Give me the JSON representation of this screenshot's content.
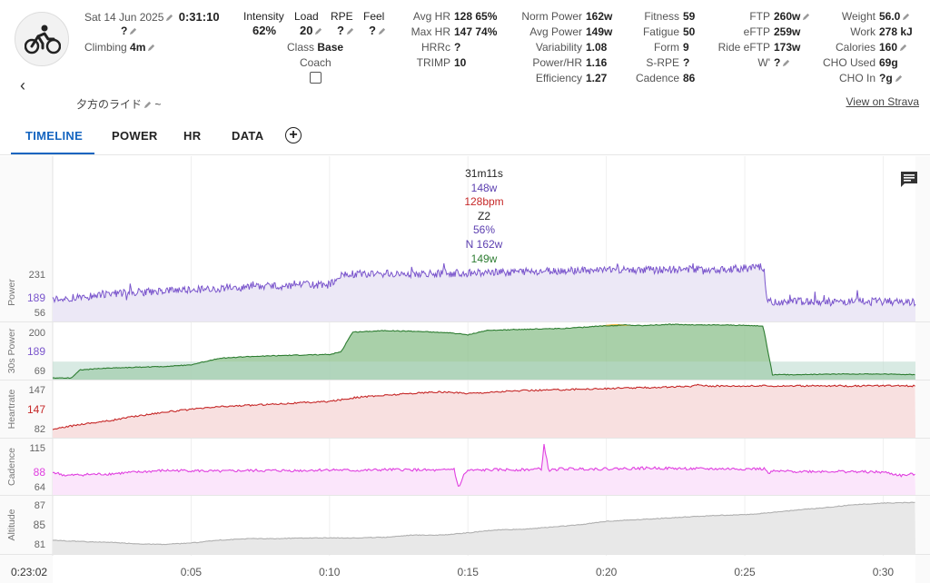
{
  "activity": {
    "date": "Sat 14 Jun 2025",
    "duration": "0:31:10",
    "type_value": "?",
    "climbing_label": "Climbing",
    "climbing_value": "4m",
    "name": "夕方のライド",
    "name_suffix": "~",
    "view_strava": "View on Strava"
  },
  "stats": {
    "intensity": {
      "label": "Intensity",
      "value": "62%"
    },
    "load": {
      "label": "Load",
      "value": "20"
    },
    "rpe": {
      "label": "RPE",
      "value": "?"
    },
    "feel": {
      "label": "Feel",
      "value": "?"
    },
    "class": {
      "label": "Class",
      "value": "Base"
    },
    "coach": {
      "label": "Coach"
    },
    "avg_hr": {
      "label": "Avg HR",
      "value": "128",
      "pct": "65%"
    },
    "max_hr": {
      "label": "Max HR",
      "value": "147",
      "pct": "74%"
    },
    "hrrc": {
      "label": "HRRc",
      "value": "?"
    },
    "trimp": {
      "label": "TRIMP",
      "value": "10"
    },
    "norm_power": {
      "label": "Norm Power",
      "value": "162w"
    },
    "avg_power": {
      "label": "Avg Power",
      "value": "149w"
    },
    "variability": {
      "label": "Variability",
      "value": "1.08"
    },
    "power_hr": {
      "label": "Power/HR",
      "value": "1.16"
    },
    "efficiency": {
      "label": "Efficiency",
      "value": "1.27"
    },
    "fitness": {
      "label": "Fitness",
      "value": "59"
    },
    "fatigue": {
      "label": "Fatigue",
      "value": "50"
    },
    "form": {
      "label": "Form",
      "value": "9"
    },
    "srpe": {
      "label": "S-RPE",
      "value": "?"
    },
    "cadence": {
      "label": "Cadence",
      "value": "86"
    },
    "ftp": {
      "label": "FTP",
      "value": "260w"
    },
    "eftp": {
      "label": "eFTP",
      "value": "259w"
    },
    "ride_eftp": {
      "label": "Ride eFTP",
      "value": "173w"
    },
    "wprime": {
      "label": "W'",
      "value": "?"
    },
    "weight": {
      "label": "Weight",
      "value": "56.0"
    },
    "work": {
      "label": "Work",
      "value": "278 kJ"
    },
    "calories": {
      "label": "Calories",
      "value": "160"
    },
    "cho_used": {
      "label": "CHO Used",
      "value": "69g"
    },
    "cho_in": {
      "label": "CHO In",
      "value": "?g"
    }
  },
  "tabs": [
    {
      "label": "TIMELINE"
    },
    {
      "label": "POWER"
    },
    {
      "label": "HR"
    },
    {
      "label": "DATA"
    }
  ],
  "tooltip": {
    "time": "31m11s",
    "power": "148w",
    "hr": "128bpm",
    "zone": "Z2",
    "pct": "56%",
    "np": "N 162w",
    "power2": "149w"
  },
  "colors": {
    "accent": "#1565c0",
    "power": "#7a55cc",
    "power30_line": "#2e7d32",
    "power30_fill": "#8cc08c",
    "power30_top": "#f0b43c",
    "heartrate": "#c62828",
    "cadence": "#e040e0",
    "altitude": "#aaaaaa"
  },
  "chart_data": [
    {
      "type": "line",
      "name": "Power",
      "ylabel": "Power",
      "ticks": [
        "231",
        "189",
        "56"
      ],
      "current": "189",
      "x_min_seconds": 0,
      "x_max_seconds": 1870,
      "points": [
        [
          0,
          120
        ],
        [
          60,
          130
        ],
        [
          120,
          140
        ],
        [
          240,
          150
        ],
        [
          360,
          160
        ],
        [
          420,
          163
        ],
        [
          480,
          168
        ],
        [
          540,
          172
        ],
        [
          600,
          172
        ],
        [
          630,
          210
        ],
        [
          700,
          212
        ],
        [
          800,
          212
        ],
        [
          900,
          215
        ],
        [
          1000,
          218
        ],
        [
          1100,
          222
        ],
        [
          1200,
          225
        ],
        [
          1300,
          226
        ],
        [
          1400,
          228
        ],
        [
          1500,
          232
        ],
        [
          1540,
          235
        ],
        [
          1550,
          110
        ],
        [
          1620,
          112
        ],
        [
          1700,
          110
        ],
        [
          1800,
          112
        ],
        [
          1870,
          110
        ]
      ]
    },
    {
      "type": "area",
      "name": "30s Power",
      "ylabel": "30s Power",
      "ticks": [
        "200",
        "189",
        "69"
      ],
      "current": "189",
      "points": [
        [
          0,
          60
        ],
        [
          40,
          60
        ],
        [
          60,
          85
        ],
        [
          120,
          90
        ],
        [
          240,
          95
        ],
        [
          300,
          100
        ],
        [
          360,
          120
        ],
        [
          420,
          125
        ],
        [
          480,
          128
        ],
        [
          540,
          130
        ],
        [
          600,
          132
        ],
        [
          625,
          140
        ],
        [
          650,
          200
        ],
        [
          720,
          205
        ],
        [
          800,
          202
        ],
        [
          860,
          198
        ],
        [
          900,
          192
        ],
        [
          940,
          205
        ],
        [
          1000,
          208
        ],
        [
          1060,
          210
        ],
        [
          1120,
          212
        ],
        [
          1180,
          218
        ],
        [
          1240,
          222
        ],
        [
          1280,
          220
        ],
        [
          1340,
          224
        ],
        [
          1400,
          222
        ],
        [
          1460,
          222
        ],
        [
          1520,
          220
        ],
        [
          1540,
          218
        ],
        [
          1560,
          70
        ],
        [
          1600,
          70
        ],
        [
          1700,
          72
        ],
        [
          1800,
          72
        ],
        [
          1870,
          70
        ]
      ]
    },
    {
      "type": "area",
      "name": "Heartrate",
      "ylabel": "Heartrate",
      "ticks": [
        "147",
        "147",
        "82"
      ],
      "current": "147",
      "points": [
        [
          0,
          82
        ],
        [
          60,
          90
        ],
        [
          120,
          95
        ],
        [
          180,
          102
        ],
        [
          240,
          108
        ],
        [
          300,
          112
        ],
        [
          360,
          116
        ],
        [
          420,
          118
        ],
        [
          480,
          120
        ],
        [
          540,
          122
        ],
        [
          600,
          124
        ],
        [
          660,
          130
        ],
        [
          720,
          133
        ],
        [
          780,
          136
        ],
        [
          840,
          138
        ],
        [
          900,
          136
        ],
        [
          960,
          138
        ],
        [
          1020,
          140
        ],
        [
          1080,
          141
        ],
        [
          1140,
          142
        ],
        [
          1200,
          143
        ],
        [
          1260,
          144
        ],
        [
          1320,
          145
        ],
        [
          1380,
          146
        ],
        [
          1400,
          149
        ],
        [
          1420,
          147
        ],
        [
          1500,
          147
        ],
        [
          1600,
          147
        ],
        [
          1700,
          147
        ],
        [
          1870,
          147
        ]
      ]
    },
    {
      "type": "area",
      "name": "Cadence",
      "ylabel": "Cadence",
      "ticks": [
        "115",
        "88",
        "64"
      ],
      "current": "88",
      "points": [
        [
          0,
          82
        ],
        [
          30,
          78
        ],
        [
          60,
          79
        ],
        [
          120,
          80
        ],
        [
          180,
          82
        ],
        [
          240,
          84
        ],
        [
          300,
          84
        ],
        [
          360,
          83
        ],
        [
          420,
          84
        ],
        [
          480,
          84
        ],
        [
          540,
          84
        ],
        [
          600,
          85
        ],
        [
          660,
          84
        ],
        [
          720,
          85
        ],
        [
          780,
          85
        ],
        [
          840,
          84
        ],
        [
          870,
          86
        ],
        [
          880,
          62
        ],
        [
          890,
          78
        ],
        [
          900,
          84
        ],
        [
          960,
          85
        ],
        [
          1020,
          85
        ],
        [
          1060,
          86
        ],
        [
          1065,
          115
        ],
        [
          1075,
          84
        ],
        [
          1100,
          86
        ],
        [
          1200,
          86
        ],
        [
          1300,
          87
        ],
        [
          1400,
          86
        ],
        [
          1500,
          86
        ],
        [
          1545,
          86
        ],
        [
          1550,
          80
        ],
        [
          1560,
          83
        ],
        [
          1600,
          83
        ],
        [
          1700,
          83
        ],
        [
          1800,
          82
        ],
        [
          1840,
          78
        ],
        [
          1870,
          80
        ]
      ]
    },
    {
      "type": "area",
      "name": "Altitude",
      "ylabel": "Altitude",
      "ticks": [
        "87",
        "85",
        "81"
      ],
      "points": [
        [
          0,
          81.9
        ],
        [
          60,
          81.7
        ],
        [
          120,
          81.6
        ],
        [
          180,
          81.4
        ],
        [
          240,
          81.3
        ],
        [
          300,
          81.5
        ],
        [
          360,
          81.9
        ],
        [
          420,
          82.1
        ],
        [
          480,
          82.1
        ],
        [
          540,
          82.2
        ],
        [
          600,
          82.2
        ],
        [
          660,
          82.2
        ],
        [
          720,
          82.3
        ],
        [
          780,
          82.6
        ],
        [
          840,
          82.6
        ],
        [
          900,
          82.9
        ],
        [
          960,
          83.3
        ],
        [
          1020,
          83.4
        ],
        [
          1080,
          83.7
        ],
        [
          1140,
          84.0
        ],
        [
          1200,
          84.5
        ],
        [
          1260,
          84.7
        ],
        [
          1320,
          84.9
        ],
        [
          1380,
          85.1
        ],
        [
          1440,
          85.3
        ],
        [
          1500,
          85.4
        ],
        [
          1560,
          85.7
        ],
        [
          1620,
          86.1
        ],
        [
          1680,
          86.4
        ],
        [
          1740,
          86.8
        ],
        [
          1800,
          87.0
        ],
        [
          1870,
          87.1
        ]
      ]
    }
  ],
  "x_axis": {
    "start_label": "0:23:02",
    "ticks": [
      {
        "label": "0:05",
        "seconds": 300
      },
      {
        "label": "0:10",
        "seconds": 600
      },
      {
        "label": "0:15",
        "seconds": 900
      },
      {
        "label": "0:20",
        "seconds": 1200
      },
      {
        "label": "0:25",
        "seconds": 1500
      },
      {
        "label": "0:30",
        "seconds": 1800
      }
    ]
  }
}
